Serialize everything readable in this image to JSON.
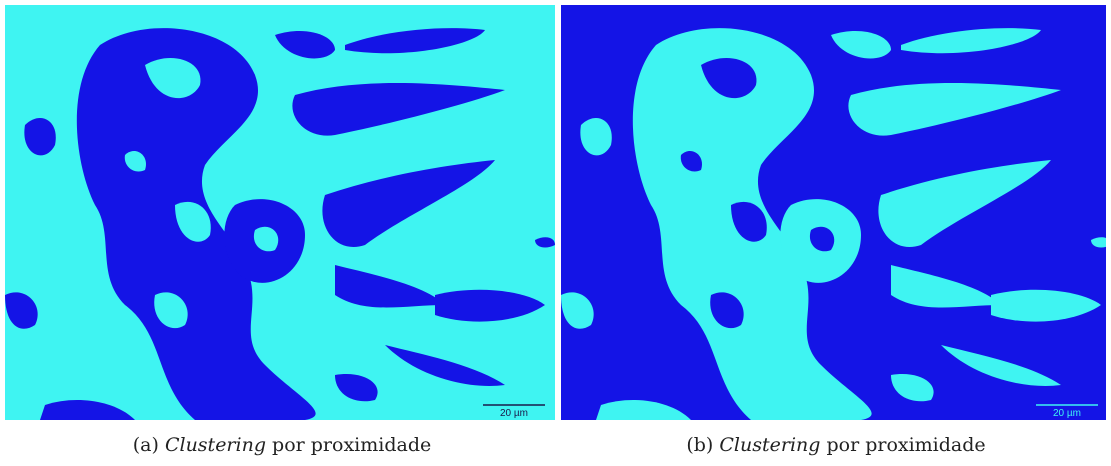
{
  "panels": [
    {
      "label": "(a)",
      "caption_emph": "Clustering",
      "caption_rest": "por proximidade",
      "scale_bar": "20 µm"
    },
    {
      "label": "(b)",
      "caption_emph": "Clustering",
      "caption_rest": "por proximidade",
      "scale_bar": "20 µm"
    }
  ]
}
